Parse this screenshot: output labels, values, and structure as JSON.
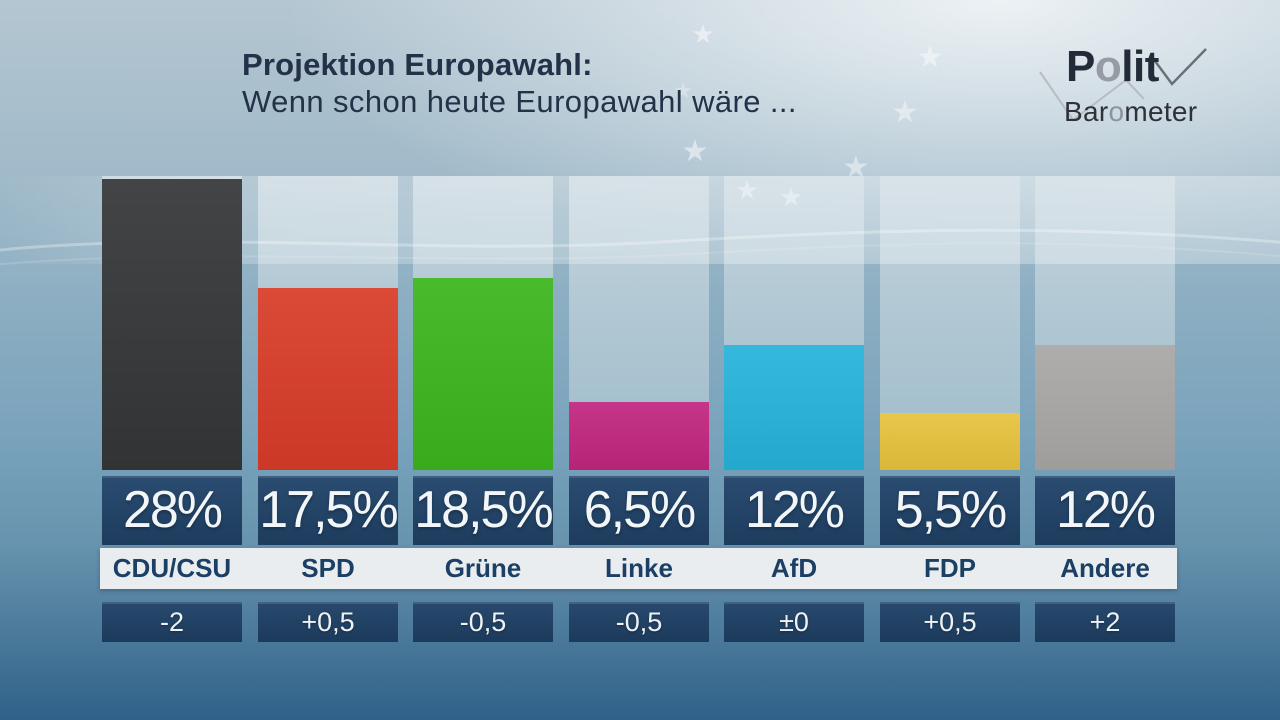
{
  "header": {
    "title_line1": "Projektion Europawahl:",
    "title_line2": "Wenn schon heute Europawahl wäre ..."
  },
  "logo": {
    "line1": {
      "a": "P",
      "o": "o",
      "b": "lit"
    },
    "line2": {
      "a": "Bar",
      "o": "o",
      "b": "meter"
    }
  },
  "chart_data": {
    "type": "bar",
    "title": "Projektion Europawahl: Wenn schon heute Europawahl wäre ...",
    "categories": [
      "CDU/CSU",
      "SPD",
      "Grüne",
      "Linke",
      "AfD",
      "FDP",
      "Andere"
    ],
    "values": [
      28,
      17.5,
      18.5,
      6.5,
      12,
      5.5,
      12
    ],
    "value_labels": [
      "28%",
      "17,5%",
      "18,5%",
      "6,5%",
      "12%",
      "5,5%",
      "12%"
    ],
    "change_values": [
      -2,
      0.5,
      -0.5,
      -0.5,
      0,
      0.5,
      2
    ],
    "change_labels": [
      "-2",
      "+0,5",
      "-0,5",
      "-0,5",
      "±0",
      "+0,5",
      "+2"
    ],
    "bar_colors": [
      "#343638",
      "#d83c28",
      "#3cb51d",
      "#c1267f",
      "#26b3da",
      "#e6c33d",
      "#a8a7a6"
    ],
    "unit": "%",
    "ylim": [
      0,
      28
    ],
    "grid": false,
    "legend": null
  },
  "colors": {
    "value_box_navy": "#1d3c5e",
    "change_box_navy": "#1c3a5b",
    "name_strip": "#e9edef",
    "party_text": "#1c3f66",
    "title_text": "#233248",
    "background_top": "#b4c6d1",
    "background_bottom": "#2f6289"
  }
}
